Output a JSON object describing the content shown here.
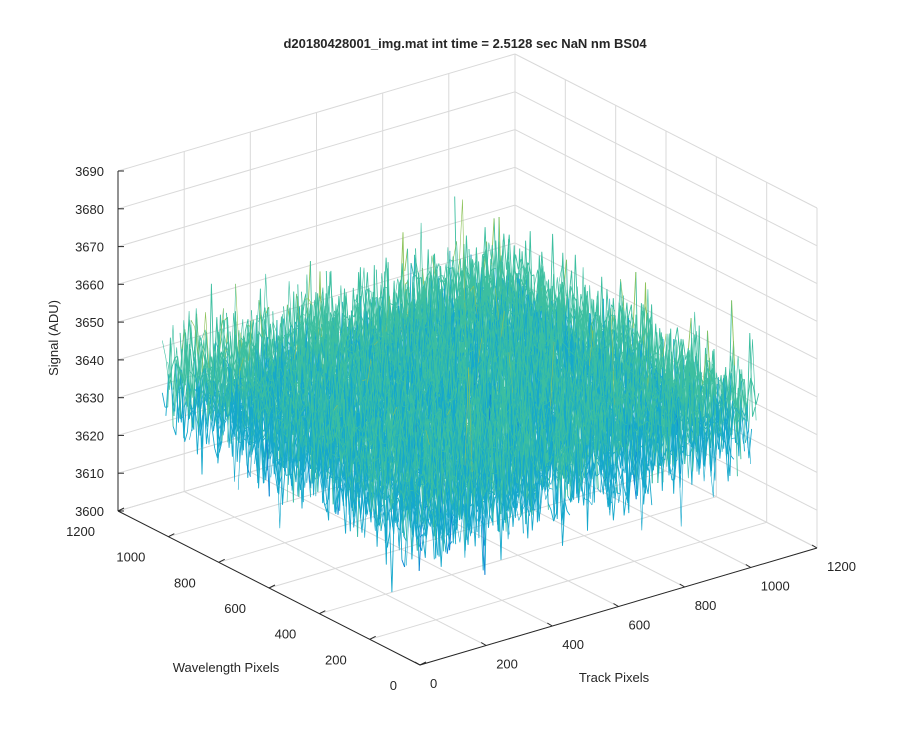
{
  "chart_data": {
    "type": "surface",
    "title": "d20180428001_img.mat int time = 2.5128 sec  NaN nm BS04",
    "xlabel": "Track Pixels",
    "ylabel": "Wavelength Pixels",
    "zlabel": "Signal (ADU)",
    "xlim": [
      0,
      1200
    ],
    "ylim": [
      0,
      1200
    ],
    "zlim": [
      3600,
      3690
    ],
    "x_ticks": [
      "0",
      "200",
      "400",
      "600",
      "800",
      "1000",
      "1200"
    ],
    "y_ticks": [
      "0",
      "200",
      "400",
      "600",
      "800",
      "1000",
      "1200"
    ],
    "z_ticks": [
      "3600",
      "3610",
      "3620",
      "3630",
      "3640",
      "3650",
      "3660",
      "3670",
      "3680",
      "3690"
    ],
    "grid": true,
    "colormap": [
      "#0d47c9",
      "#0a7fd6",
      "#16a8cc",
      "#3dbfa0",
      "#8ec35a",
      "#e3b738"
    ],
    "series": [
      {
        "x_range": [
          0,
          1024
        ],
        "y_range": [
          0,
          1024
        ],
        "mean": 3640,
        "noise_std": 8,
        "min": 3595,
        "max": 3682
      }
    ]
  }
}
